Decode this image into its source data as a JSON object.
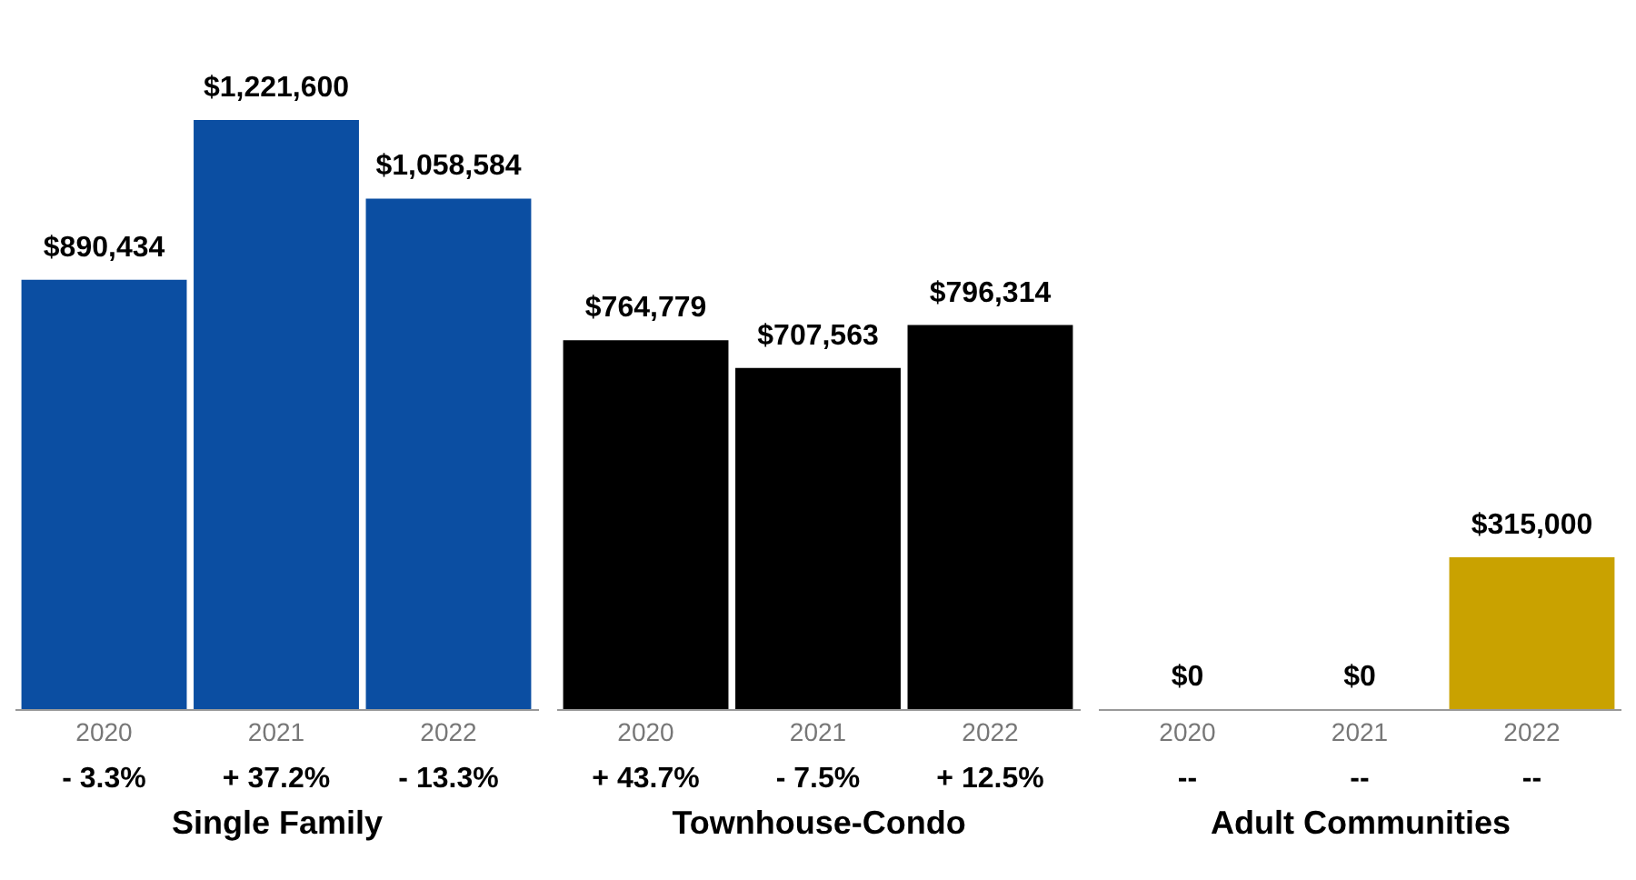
{
  "chart_data": [
    {
      "type": "bar",
      "categories": [
        "2020",
        "2021",
        "2022"
      ],
      "values": [
        890434,
        1221600,
        1058584
      ],
      "value_labels": [
        "$890,434",
        "$1,221,600",
        "$1,058,584"
      ],
      "color": "#0b4ea2",
      "xlabel": "Single Family",
      "tick_labels": "x",
      "grid": false,
      "annotations": [
        "- 3.3%",
        "+ 37.2%",
        "- 13.3%"
      ]
    },
    {
      "type": "bar",
      "categories": [
        "2020",
        "2021",
        "2022"
      ],
      "values": [
        764779,
        707563,
        796314
      ],
      "value_labels": [
        "$764,779",
        "$707,563",
        "$796,314"
      ],
      "color": "#000000",
      "xlabel": "Townhouse-Condo",
      "tick_labels": "x",
      "grid": false,
      "annotations": [
        "+ 43.7%",
        "- 7.5%",
        "+ 12.5%"
      ]
    },
    {
      "type": "bar",
      "categories": [
        "2020",
        "2021",
        "2022"
      ],
      "values": [
        0,
        0,
        315000
      ],
      "value_labels": [
        "$0",
        "$0",
        "$315,000"
      ],
      "color": "#c9a200",
      "xlabel": "Adult Communities",
      "tick_labels": "x",
      "grid": false,
      "annotations": [
        "--",
        "--",
        "--"
      ]
    }
  ]
}
